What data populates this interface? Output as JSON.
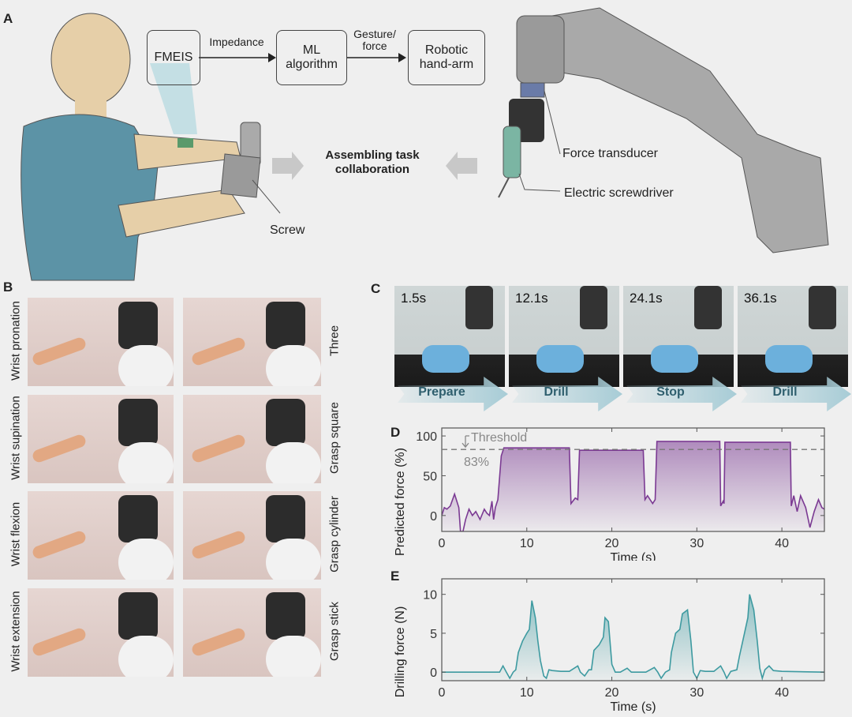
{
  "panels": {
    "a": "A",
    "b": "B",
    "c": "C",
    "d": "D",
    "e": "E"
  },
  "panel_a": {
    "flow": [
      {
        "label": "FMEIS",
        "color": "#8cc8d4"
      },
      {
        "label": "ML algorithm",
        "color": "#f2b993"
      },
      {
        "label": "Robotic hand-arm",
        "color": "#b5b5b5"
      }
    ],
    "edges": [
      "Impedance",
      "Gesture/ force"
    ],
    "center_label": "Assembling task collaboration",
    "screw_label": "Screw",
    "force_transducer_label": "Force transducer",
    "screwdriver_label": "Electric screwdriver"
  },
  "panel_b": {
    "left_labels": [
      "Wrist pronation",
      "Wrist supination",
      "Wrist flexion",
      "Wrist extension"
    ],
    "right_labels": [
      "Three",
      "Grasp square",
      "Grasp cylinder",
      "Grasp stick"
    ]
  },
  "panel_c": {
    "frames": [
      {
        "time": "1.5s",
        "phase": "Prepare"
      },
      {
        "time": "12.1s",
        "phase": "Drill"
      },
      {
        "time": "24.1s",
        "phase": "Stop"
      },
      {
        "time": "36.1s",
        "phase": "Drill"
      }
    ],
    "arrow_color": "#a7ccd6"
  },
  "chart_data": [
    {
      "type": "area",
      "panel": "D",
      "xlabel": "Time (s)",
      "ylabel": "Predicted force (%)",
      "xlim": [
        0,
        45
      ],
      "ylim": [
        -20,
        110
      ],
      "xticks": [
        0,
        10,
        20,
        30,
        40
      ],
      "yticks": [
        0,
        50,
        100
      ],
      "color": "#7b3a93",
      "threshold": {
        "value": 83,
        "label": "Threshold",
        "value_label": "83%"
      },
      "x": [
        0,
        0.3,
        0.6,
        1,
        1.5,
        2,
        2.2,
        2.5,
        2.8,
        3.2,
        3.6,
        4,
        4.5,
        5,
        5.3,
        5.6,
        5.9,
        6.1,
        6.3,
        6.6,
        7,
        7.3,
        15,
        15.2,
        15.7,
        16,
        16.2,
        23.7,
        23.9,
        24.2,
        24.8,
        25.1,
        25.3,
        32.7,
        32.8,
        33.1,
        33.2,
        33.3,
        41,
        41.1,
        41.4,
        41.8,
        42.2,
        42.8,
        43.3,
        43.8,
        44.3,
        44.7,
        45
      ],
      "y": [
        0,
        10,
        8,
        12,
        27,
        10,
        -20,
        -20,
        -5,
        8,
        0,
        5,
        -5,
        8,
        3,
        0,
        18,
        -5,
        10,
        20,
        75,
        85,
        85,
        15,
        22,
        20,
        82,
        82,
        20,
        25,
        15,
        20,
        93,
        93,
        12,
        18,
        15,
        92,
        92,
        12,
        25,
        5,
        25,
        10,
        -15,
        5,
        20,
        10,
        8
      ]
    },
    {
      "type": "area",
      "panel": "E",
      "xlabel": "Time (s)",
      "ylabel": "Drilling force (N)",
      "xlim": [
        0,
        45
      ],
      "ylim": [
        -1.1,
        12
      ],
      "xticks": [
        0,
        10,
        20,
        30,
        40
      ],
      "yticks": [
        0,
        5,
        10
      ],
      "color": "#3d9aa0",
      "x": [
        0,
        6.8,
        7.2,
        7.6,
        8,
        8.4,
        8.7,
        9,
        9.5,
        10,
        10.3,
        10.6,
        11,
        11.3,
        11.6,
        12,
        12.3,
        12.6,
        13,
        14,
        15,
        16,
        16.3,
        16.8,
        17.3,
        17.6,
        17.9,
        18.5,
        19,
        19.2,
        19.6,
        20,
        20.4,
        21,
        21.8,
        22.3,
        24,
        25,
        25.4,
        25.8,
        26.3,
        26.8,
        27,
        27.5,
        28,
        28.3,
        28.9,
        29.3,
        29.6,
        30,
        30.4,
        31,
        32,
        32.8,
        33.2,
        33.5,
        34,
        34.7,
        35,
        35.6,
        36,
        36.2,
        36.7,
        37.1,
        37.4,
        37.7,
        38,
        38.5,
        39,
        40,
        45
      ],
      "y": [
        0,
        0,
        0.8,
        0,
        -0.8,
        0,
        0.3,
        2.5,
        4,
        5,
        5.5,
        9.2,
        7,
        4,
        1.5,
        -0.5,
        -0.8,
        0.3,
        0.2,
        0.1,
        0.1,
        0.8,
        0,
        -0.5,
        0.3,
        0.3,
        2.8,
        3.5,
        4.5,
        7,
        6.5,
        1,
        0,
        0,
        0.5,
        0,
        0,
        0.6,
        0,
        -0.8,
        0,
        0.3,
        2.5,
        5,
        5.5,
        7.5,
        8,
        4,
        0,
        -0.8,
        0.2,
        0.1,
        0.1,
        0.8,
        0,
        -0.8,
        0.1,
        0.3,
        2,
        5,
        7,
        10,
        8,
        4,
        0.5,
        -0.8,
        0.3,
        0.8,
        0.2,
        0.1,
        0
      ]
    }
  ]
}
